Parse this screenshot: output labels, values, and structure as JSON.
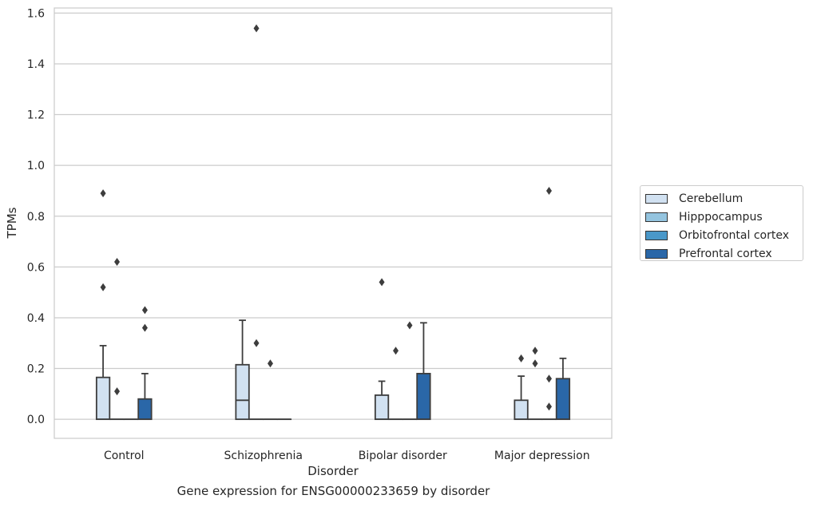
{
  "caption": "Gene expression for ENSG00000233659 by disorder",
  "chart_data": {
    "type": "box",
    "xlabel": "Disorder",
    "ylabel": "TPMs",
    "ylim": [
      -0.075,
      1.62
    ],
    "yticks": [
      "0.0",
      "0.2",
      "0.4",
      "0.6",
      "0.8",
      "1.0",
      "1.2",
      "1.4",
      "1.6"
    ],
    "ytick_values": [
      0,
      0.2,
      0.4,
      0.6,
      0.8,
      1.0,
      1.2,
      1.4,
      1.6
    ],
    "grid": "horizontal",
    "legend_position": "right",
    "categories": [
      "Control",
      "Schizophrenia",
      "Bipolar disorder",
      "Major depression"
    ],
    "series": [
      {
        "name": "Cerebellum",
        "color": "#d1e1f1",
        "boxes": [
          {
            "q1": 0,
            "median": 0,
            "q3": 0.165,
            "whisker_low": 0,
            "whisker_high": 0.29,
            "outliers": [
              0.89,
              0.52
            ]
          },
          {
            "q1": 0,
            "median": 0.075,
            "q3": 0.215,
            "whisker_low": 0,
            "whisker_high": 0.39,
            "outliers": []
          },
          {
            "q1": 0,
            "median": 0,
            "q3": 0.095,
            "whisker_low": 0,
            "whisker_high": 0.15,
            "outliers": [
              0.54
            ]
          },
          {
            "q1": 0,
            "median": 0,
            "q3": 0.075,
            "whisker_low": 0,
            "whisker_high": 0.17,
            "outliers": [
              0.24
            ]
          }
        ]
      },
      {
        "name": "Hipppocampus",
        "color": "#94c4df",
        "boxes": [
          {
            "q1": 0,
            "median": 0,
            "q3": 0,
            "whisker_low": 0,
            "whisker_high": 0,
            "outliers": [
              0.11,
              0.62
            ]
          },
          {
            "q1": 0,
            "median": 0,
            "q3": 0,
            "whisker_low": 0,
            "whisker_high": 0,
            "outliers": [
              1.54,
              0.3
            ]
          },
          {
            "q1": 0,
            "median": 0,
            "q3": 0,
            "whisker_low": 0,
            "whisker_high": 0,
            "outliers": [
              0.27
            ]
          },
          {
            "q1": 0,
            "median": 0,
            "q3": 0,
            "whisker_low": 0,
            "whisker_high": 0,
            "outliers": [
              0.27,
              0.22
            ]
          }
        ]
      },
      {
        "name": "Orbitofrontal cortex",
        "color": "#4a98c9",
        "boxes": [
          {
            "q1": 0,
            "median": 0,
            "q3": 0,
            "whisker_low": 0,
            "whisker_high": 0,
            "outliers": []
          },
          {
            "q1": 0,
            "median": 0,
            "q3": 0,
            "whisker_low": 0,
            "whisker_high": 0,
            "outliers": [
              0.22
            ]
          },
          {
            "q1": 0,
            "median": 0,
            "q3": 0,
            "whisker_low": 0,
            "whisker_high": 0,
            "outliers": [
              0.37
            ]
          },
          {
            "q1": 0,
            "median": 0,
            "q3": 0,
            "whisker_low": 0,
            "whisker_high": 0,
            "outliers": [
              0.9,
              0.16,
              0.05
            ]
          }
        ]
      },
      {
        "name": "Prefrontal cortex",
        "color": "#2a67a8",
        "boxes": [
          {
            "q1": 0,
            "median": 0,
            "q3": 0.08,
            "whisker_low": 0,
            "whisker_high": 0.18,
            "outliers": [
              0.43,
              0.36
            ]
          },
          {
            "q1": 0,
            "median": 0,
            "q3": 0,
            "whisker_low": 0,
            "whisker_high": 0,
            "outliers": []
          },
          {
            "q1": 0,
            "median": 0,
            "q3": 0.18,
            "whisker_low": 0,
            "whisker_high": 0.38,
            "outliers": []
          },
          {
            "q1": 0,
            "median": 0,
            "q3": 0.16,
            "whisker_low": 0,
            "whisker_high": 0.24,
            "outliers": []
          }
        ]
      }
    ]
  }
}
